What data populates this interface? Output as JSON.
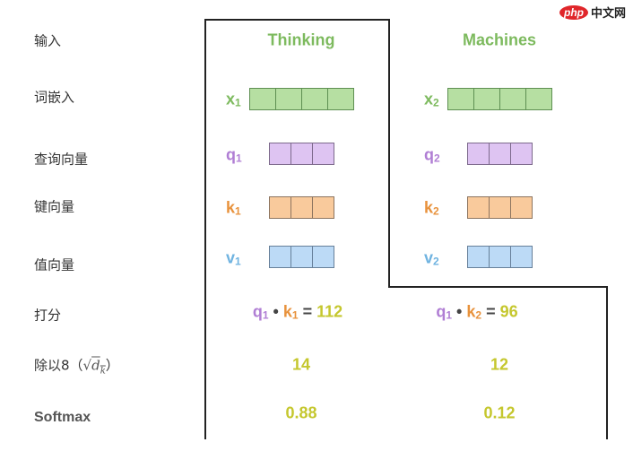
{
  "watermark": {
    "logo": "php",
    "text": "中文网"
  },
  "row_labels": {
    "input": "输入",
    "embedding": "词嵌入",
    "query": "查询向量",
    "key": "键向量",
    "value": "值向量",
    "score": "打分",
    "divide_prefix": "除以8（",
    "divide_sqrt": "√",
    "divide_d": "d",
    "divide_k": "k",
    "divide_suffix": "）",
    "softmax": "Softmax"
  },
  "columns": [
    {
      "token": "Thinking",
      "x": {
        "name": "x",
        "sub": "1",
        "cells": 4
      },
      "q": {
        "name": "q",
        "sub": "1",
        "cells": 3
      },
      "k": {
        "name": "k",
        "sub": "1",
        "cells": 3
      },
      "v": {
        "name": "v",
        "sub": "1",
        "cells": 3
      },
      "score": {
        "q": "q",
        "q_sub": "1",
        "dot": "•",
        "k": "k",
        "k_sub": "1",
        "eq": "=",
        "value": "112"
      },
      "scaled": "14",
      "softmax": "0.88"
    },
    {
      "token": "Machines",
      "x": {
        "name": "x",
        "sub": "2",
        "cells": 4
      },
      "q": {
        "name": "q",
        "sub": "2",
        "cells": 3
      },
      "k": {
        "name": "k",
        "sub": "2",
        "cells": 3
      },
      "v": {
        "name": "v",
        "sub": "2",
        "cells": 3
      },
      "score": {
        "q": "q",
        "q_sub": "1",
        "dot": "•",
        "k": "k",
        "k_sub": "2",
        "eq": "=",
        "value": "96"
      },
      "scaled": "12",
      "softmax": "0.12"
    }
  ],
  "colors": {
    "embedding": "#7dba5e",
    "query": "#b07ed4",
    "key": "#e8923c",
    "value": "#6fb3e0",
    "numbers": "#c5c72e",
    "border": "#222222"
  }
}
